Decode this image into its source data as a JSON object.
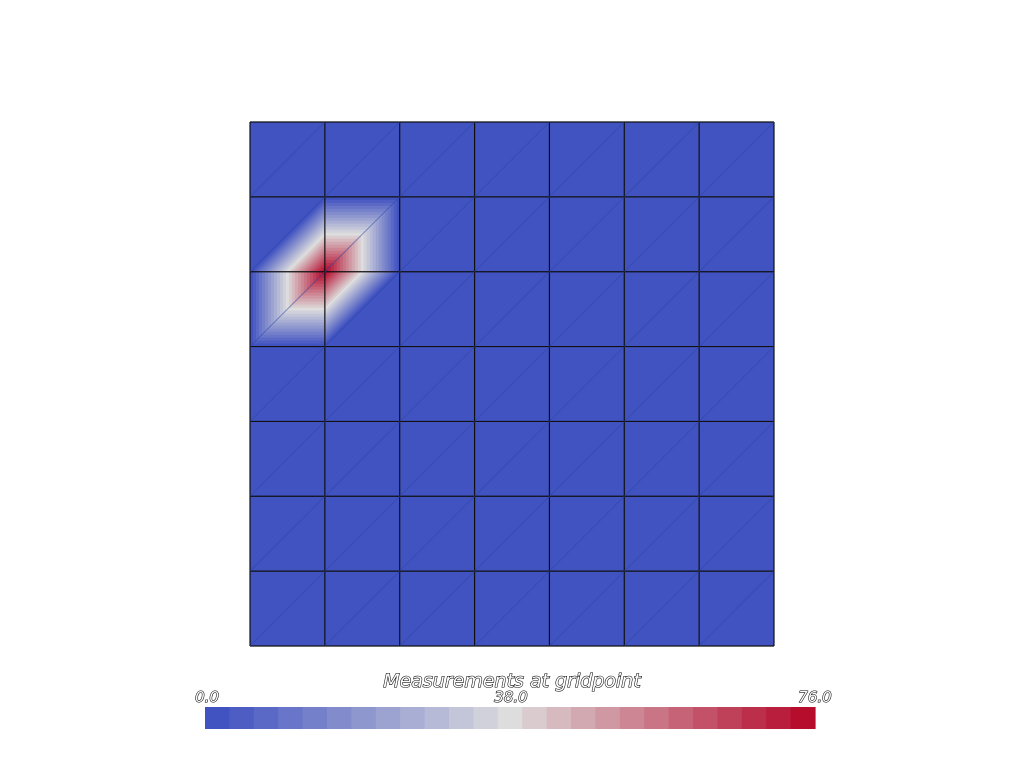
{
  "chart_data": {
    "type": "heatmap",
    "title": "",
    "xlabel": "",
    "ylabel": "",
    "grid": true,
    "grid_rows": 7,
    "grid_cols": 7,
    "field": {
      "background_value": 0,
      "peak_value": 76,
      "peak_node": {
        "col": 1,
        "row": 2
      },
      "peak_radius_cells": 1
    },
    "colorbar": {
      "title": "Measurements at gridpoint",
      "min": 0,
      "max": 76,
      "tick_labels": [
        "0.0",
        "38.0",
        "76.0"
      ],
      "tick_values": [
        0,
        38,
        76
      ],
      "num_bands": 25,
      "orientation": "horizontal",
      "placement": "bottom",
      "colormap": "coolwarm",
      "low_color": "#3b4cc0",
      "mid_color": "#dddddd",
      "high_color": "#b40426"
    }
  }
}
